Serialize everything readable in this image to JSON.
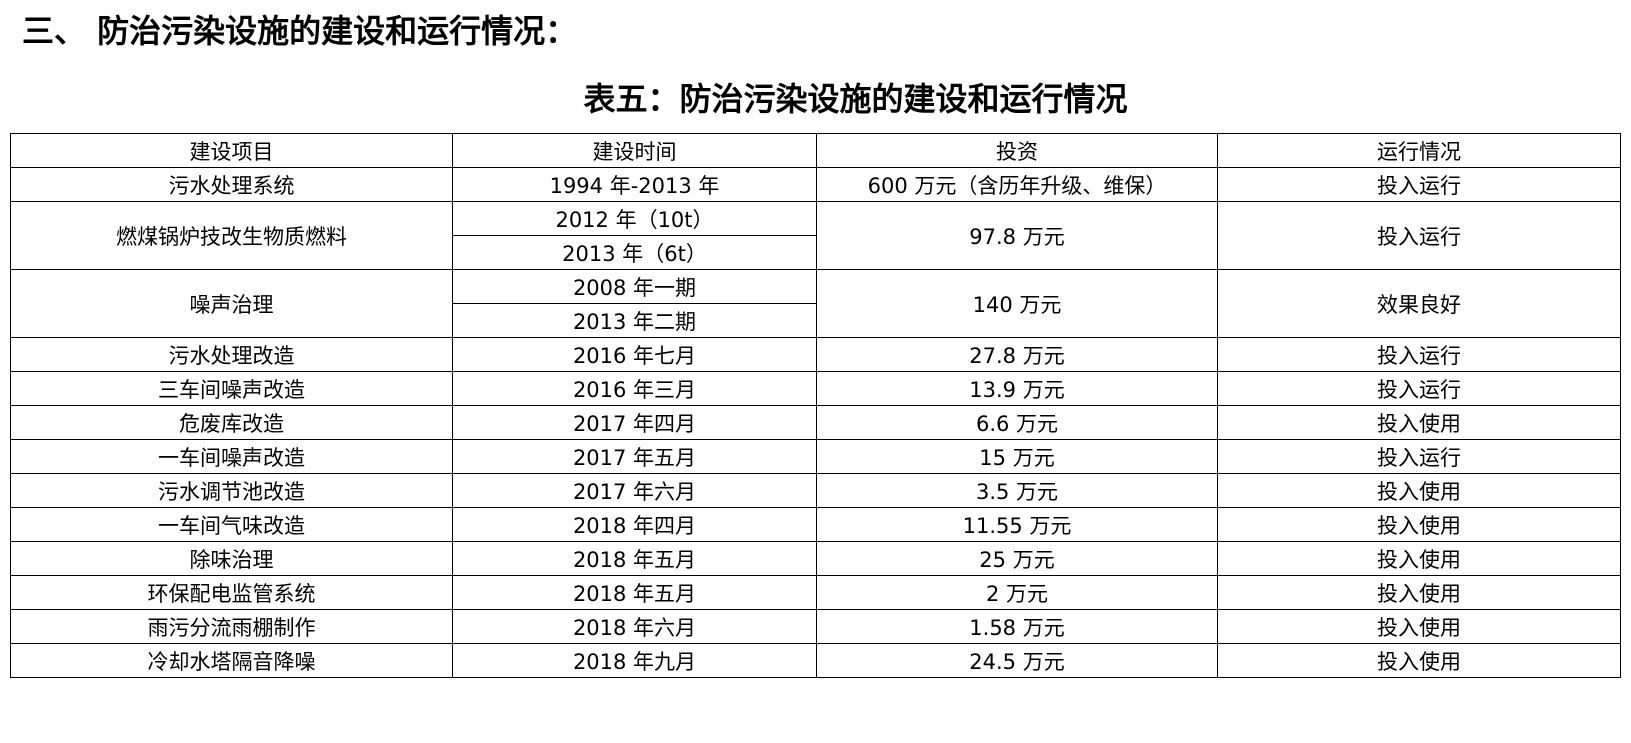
{
  "heading": "三、 防治污染设施的建设和运行情况：",
  "table": {
    "caption": "表五：防治污染设施的建设和运行情况",
    "header": [
      "建设项目",
      "建设时间",
      "投资",
      "运行情况"
    ],
    "rows": [
      {
        "item": "污水处理系统",
        "times": [
          "1994 年-2013 年"
        ],
        "investment": "600 万元（含历年升级、维保）",
        "status": "投入运行"
      },
      {
        "item": "燃煤锅炉技改生物质燃料",
        "times": [
          "2012 年（10t）",
          "2013 年（6t）"
        ],
        "investment": "97.8 万元",
        "status": "投入运行"
      },
      {
        "item": "噪声治理",
        "times": [
          "2008 年一期",
          "2013 年二期"
        ],
        "investment": "140 万元",
        "status": "效果良好"
      },
      {
        "item": "污水处理改造",
        "times": [
          "2016 年七月"
        ],
        "investment": "27.8 万元",
        "status": "投入运行"
      },
      {
        "item": "三车间噪声改造",
        "times": [
          "2016 年三月"
        ],
        "investment": "13.9 万元",
        "status": "投入运行"
      },
      {
        "item": "危废库改造",
        "times": [
          "2017 年四月"
        ],
        "investment": "6.6 万元",
        "status": "投入使用"
      },
      {
        "item": "一车间噪声改造",
        "times": [
          "2017 年五月"
        ],
        "investment": "15 万元",
        "status": "投入运行"
      },
      {
        "item": "污水调节池改造",
        "times": [
          "2017 年六月"
        ],
        "investment": "3.5 万元",
        "status": "投入使用"
      },
      {
        "item": "一车间气味改造",
        "times": [
          "2018 年四月"
        ],
        "investment": "11.55 万元",
        "status": "投入使用"
      },
      {
        "item": "除味治理",
        "times": [
          "2018 年五月"
        ],
        "investment": "25 万元",
        "status": "投入使用"
      },
      {
        "item": "环保配电监管系统",
        "times": [
          "2018 年五月"
        ],
        "investment": "2 万元",
        "status": "投入使用"
      },
      {
        "item": "雨污分流雨棚制作",
        "times": [
          "2018 年六月"
        ],
        "investment": "1.58 万元",
        "status": "投入使用"
      },
      {
        "item": "冷却水塔隔音降噪",
        "times": [
          "2018 年九月"
        ],
        "investment": "24.5 万元",
        "status": "投入使用"
      }
    ]
  }
}
